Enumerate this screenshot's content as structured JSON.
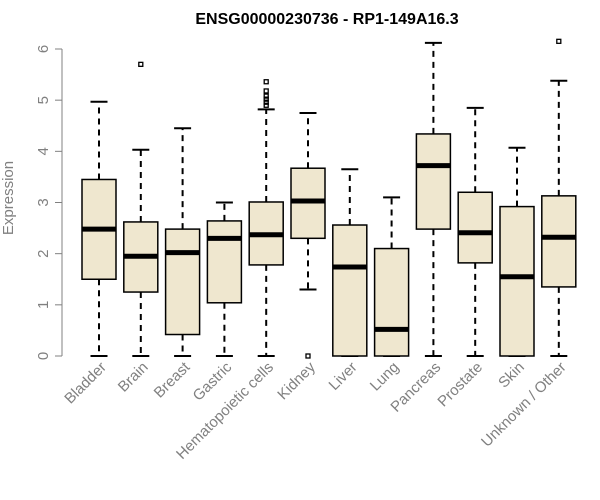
{
  "chart_data": {
    "type": "boxplot",
    "title": "ENSG00000230736 - RP1-149A16.3",
    "xlabel": "",
    "ylabel": "Expression",
    "ylim": [
      0,
      6
    ],
    "yticks": [
      0,
      1,
      2,
      3,
      4,
      5,
      6
    ],
    "grid": false,
    "box_fill": "#efe7cf",
    "categories": [
      "Bladder",
      "Brain",
      "Breast",
      "Gastric",
      "Hematopoietic cells",
      "Kidney",
      "Liver",
      "Lung",
      "Pancreas",
      "Prostate",
      "Skin",
      "Unknown / Other"
    ],
    "boxes": [
      {
        "min": 0.0,
        "q1": 1.5,
        "median": 2.48,
        "q3": 3.45,
        "max": 4.97,
        "outliers": []
      },
      {
        "min": 0.0,
        "q1": 1.25,
        "median": 1.95,
        "q3": 2.62,
        "max": 4.03,
        "outliers": [
          5.7
        ]
      },
      {
        "min": 0.0,
        "q1": 0.42,
        "median": 2.02,
        "q3": 2.48,
        "max": 4.45,
        "outliers": []
      },
      {
        "min": 0.0,
        "q1": 1.04,
        "median": 2.3,
        "q3": 2.64,
        "max": 3.0,
        "outliers": []
      },
      {
        "min": 0.0,
        "q1": 1.78,
        "median": 2.37,
        "q3": 3.01,
        "max": 4.82,
        "outliers": [
          4.9,
          4.96,
          5.02,
          5.08,
          5.18,
          5.36
        ]
      },
      {
        "min": 1.3,
        "q1": 2.3,
        "median": 3.03,
        "q3": 3.67,
        "max": 4.75,
        "outliers": [
          0.0
        ]
      },
      {
        "min": 0.0,
        "q1": 0.0,
        "median": 1.74,
        "q3": 2.56,
        "max": 3.65,
        "outliers": []
      },
      {
        "min": 0.0,
        "q1": 0.0,
        "median": 0.52,
        "q3": 2.1,
        "max": 3.1,
        "outliers": []
      },
      {
        "min": 0.0,
        "q1": 2.48,
        "median": 3.72,
        "q3": 4.34,
        "max": 6.12,
        "outliers": []
      },
      {
        "min": 0.0,
        "q1": 1.82,
        "median": 2.41,
        "q3": 3.2,
        "max": 4.85,
        "outliers": []
      },
      {
        "min": 0.0,
        "q1": 0.0,
        "median": 1.55,
        "q3": 2.92,
        "max": 4.07,
        "outliers": []
      },
      {
        "min": 0.0,
        "q1": 1.35,
        "median": 2.32,
        "q3": 3.13,
        "max": 5.38,
        "outliers": [
          6.15
        ]
      }
    ]
  }
}
